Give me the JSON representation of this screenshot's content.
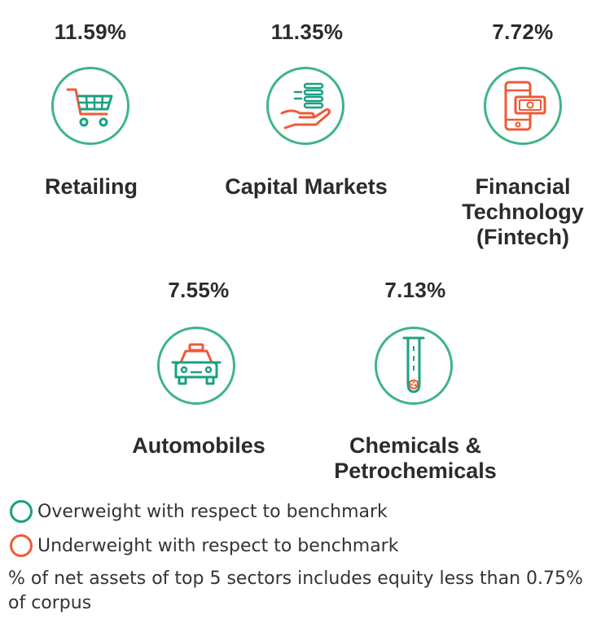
{
  "colors": {
    "overweight": "#1aa083",
    "underweight": "#ee5a37",
    "circle_border": "#3eb489",
    "text": "#2b2b2b"
  },
  "sectors": [
    {
      "percent": "11.59%",
      "name": "Retailing",
      "icon": "shopping-cart-icon"
    },
    {
      "percent": "11.35%",
      "name": "Capital Markets",
      "icon": "hand-coins-icon"
    },
    {
      "percent": "7.72%",
      "name_lines": [
        "Financial",
        "Technology",
        "(Fintech)"
      ],
      "icon": "phone-money-icon"
    },
    {
      "percent": "7.55%",
      "name": "Automobiles",
      "icon": "car-icon"
    },
    {
      "percent": "7.13%",
      "name_lines": [
        "Chemicals &",
        "Petrochemicals"
      ],
      "icon": "test-tube-icon"
    }
  ],
  "legend": {
    "overweight": "Overweight with respect to benchmark",
    "underweight": "Underweight with respect to benchmark",
    "note": "% of net assets of top 5 sectors includes equity less than 0.75% of corpus"
  }
}
